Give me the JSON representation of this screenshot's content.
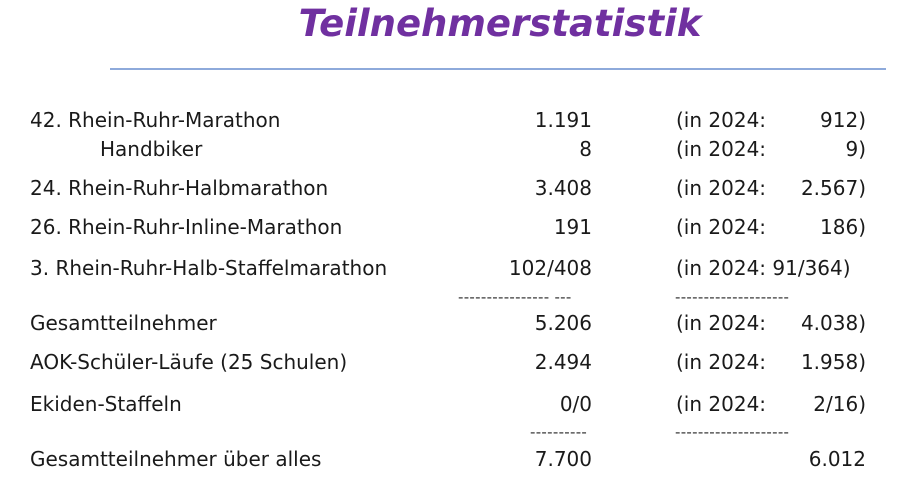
{
  "title": "Teilnehmerstatistik",
  "accent_color": "#7030a0",
  "rule_color": "#8eaadb",
  "rows": [
    {
      "label": "42. Rhein-Ruhr-Marathon",
      "value": "1.191",
      "prev_prefix": "(in 2024:",
      "prev_value": "912)"
    },
    {
      "label": "Handbiker",
      "value": "8",
      "prev_prefix": "(in 2024:",
      "prev_value": "9)"
    },
    {
      "label": "24. Rhein-Ruhr-Halbmarathon",
      "value": "3.408",
      "prev_prefix": "(in 2024:",
      "prev_value": "2.567)"
    },
    {
      "label": "26. Rhein-Ruhr-Inline-Marathon",
      "value": "191",
      "prev_prefix": "(in 2024:",
      "prev_value": "186)"
    },
    {
      "label": "3. Rhein-Ruhr-Halb-Staffelmarathon",
      "value": "102/408",
      "prev_prefix": "(in 2024: 91/364)",
      "prev_value": ""
    },
    {
      "label": "Gesamtteilnehmer",
      "value": "5.206",
      "prev_prefix": "(in 2024:",
      "prev_value": "4.038)"
    },
    {
      "label": "AOK-Schüler-Läufe (25 Schulen)",
      "value": "2.494",
      "prev_prefix": "(in 2024:",
      "prev_value": "1.958)"
    },
    {
      "label": "Ekiden-Staffeln",
      "value": "0/0",
      "prev_prefix": "(in 2024:",
      "prev_value": "2/16)"
    },
    {
      "label": "Gesamtteilnehmer über alles",
      "value": "7.700",
      "prev_prefix": "",
      "prev_value": "6.012"
    }
  ],
  "separators": {
    "first_value": "---------------- ---",
    "first_prev": "--------------------",
    "second_value": "----------",
    "second_prev": "--------------------"
  }
}
